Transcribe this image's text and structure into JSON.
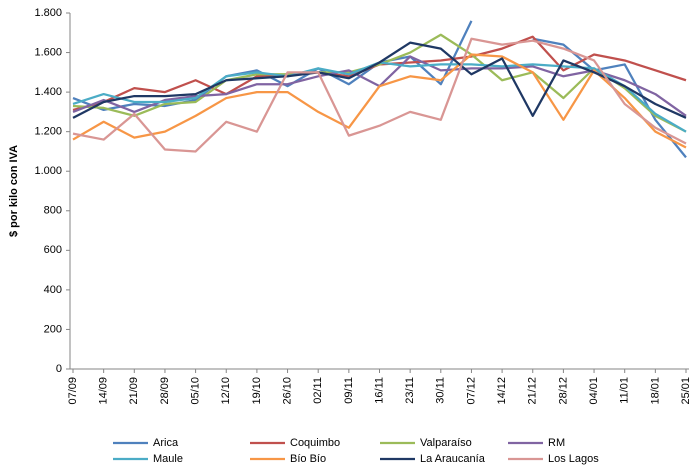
{
  "chart_data": {
    "type": "line",
    "y_label": "$ por kilo con IVA",
    "categories": [
      "07/09",
      "14/09",
      "21/09",
      "28/09",
      "05/10",
      "12/10",
      "19/10",
      "26/10",
      "02/11",
      "09/11",
      "16/11",
      "23/11",
      "30/11",
      "07/12",
      "14/12",
      "21/12",
      "28/12",
      "04/01",
      "11/01",
      "18/01",
      "25/01"
    ],
    "series": [
      {
        "name": "Arica",
        "color": "#4f81bd",
        "values": [
          1370,
          1310,
          1340,
          1330,
          1360,
          1480,
          1510,
          1430,
          1520,
          1440,
          1550,
          1580,
          1440,
          1760,
          null,
          1670,
          1640,
          1510,
          1540,
          1260,
          1070
        ]
      },
      {
        "name": "Coquimbo",
        "color": "#c0504d",
        "values": [
          1310,
          1350,
          1420,
          1400,
          1460,
          1390,
          1480,
          1490,
          1500,
          1480,
          1540,
          1550,
          1560,
          1580,
          1620,
          1680,
          1510,
          1590,
          1560,
          1510,
          1460
        ]
      },
      {
        "name": "Valparaíso",
        "color": "#9bbb59",
        "values": [
          1330,
          1320,
          1280,
          1340,
          1350,
          1460,
          1490,
          1490,
          1500,
          1500,
          1540,
          1600,
          1690,
          1590,
          1460,
          1500,
          1370,
          1520,
          1420,
          1280,
          1200
        ]
      },
      {
        "name": "RM",
        "color": "#8064a2",
        "values": [
          1300,
          1360,
          1300,
          1360,
          1380,
          1390,
          1440,
          1440,
          1480,
          1510,
          1430,
          1580,
          1510,
          1520,
          1520,
          1530,
          1480,
          1510,
          1460,
          1390,
          1280
        ]
      },
      {
        "name": "Maule",
        "color": "#4bacc6",
        "values": [
          1340,
          1390,
          1350,
          1350,
          1370,
          1480,
          1500,
          1480,
          1520,
          1490,
          1550,
          1530,
          1540,
          1540,
          1530,
          1540,
          1530,
          1520,
          1430,
          1290,
          1200
        ]
      },
      {
        "name": "Bío Bío",
        "color": "#f79646",
        "values": [
          1160,
          1250,
          1170,
          1200,
          1280,
          1370,
          1400,
          1400,
          1300,
          1220,
          1430,
          1480,
          1460,
          1590,
          1580,
          1500,
          1260,
          1510,
          1370,
          1200,
          1120
        ]
      },
      {
        "name": "La Araucanía",
        "color": "#1f3864",
        "values": [
          1270,
          1350,
          1380,
          1380,
          1390,
          1460,
          1470,
          1480,
          1500,
          1470,
          1550,
          1650,
          1620,
          1490,
          1570,
          1280,
          1560,
          1500,
          1430,
          1340,
          1270
        ]
      },
      {
        "name": "Los Lagos",
        "color": "#d99694",
        "values": [
          1190,
          1160,
          1290,
          1110,
          1100,
          1250,
          1200,
          1500,
          1500,
          1180,
          1230,
          1300,
          1260,
          1670,
          1640,
          1660,
          1620,
          1560,
          1340,
          1220,
          1140
        ]
      }
    ],
    "ylim": [
      0,
      1800
    ],
    "yticks": [
      0,
      200,
      400,
      600,
      800,
      {
        "value": 1000,
        "label": "1.000"
      },
      {
        "value": 1200,
        "label": "1.200"
      },
      {
        "value": 1400,
        "label": "1.400"
      },
      {
        "value": 1600,
        "label": "1.600"
      },
      {
        "value": 1800,
        "label": "1.800"
      }
    ],
    "grid": false,
    "legend": "bottom"
  }
}
